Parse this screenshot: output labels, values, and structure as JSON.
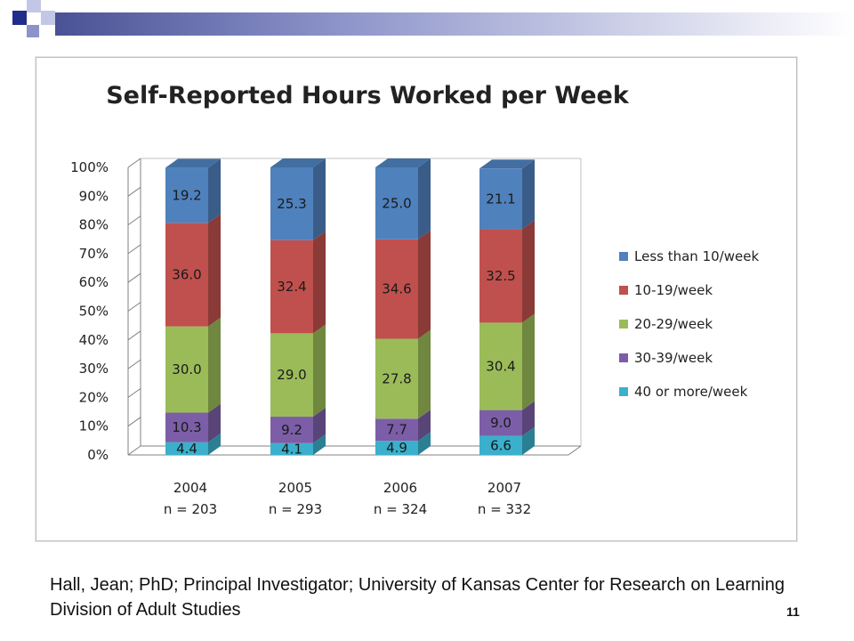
{
  "slide": {
    "citation": "Hall, Jean; PhD; Principal Investigator; University of Kansas Center for Research on Learning Division of Adult Studies",
    "page_number": "11",
    "accent_colors": [
      "#1f2e8a",
      "#8c93c9",
      "#c3c7e6"
    ]
  },
  "chart_data": {
    "type": "bar",
    "stacked": true,
    "three_d": true,
    "title": "Self-Reported Hours Worked per Week",
    "categories": [
      "2004",
      "2005",
      "2006",
      "2007"
    ],
    "category_sublabels": [
      "n = 203",
      "n = 293",
      "n = 324",
      "n = 332"
    ],
    "y_ticks": [
      "0%",
      "10%",
      "20%",
      "30%",
      "40%",
      "50%",
      "60%",
      "70%",
      "80%",
      "90%",
      "100%"
    ],
    "ylim": [
      0,
      100
    ],
    "legend_position": "right",
    "grid": false,
    "series": [
      {
        "name": "40 or more/week",
        "color": "#3ab0cc",
        "values": [
          4.4,
          4.1,
          4.9,
          6.6
        ]
      },
      {
        "name": "30-39/week",
        "color": "#7b5ea7",
        "values": [
          10.3,
          9.2,
          7.7,
          9.0
        ]
      },
      {
        "name": "20-29/week",
        "color": "#9bbb59",
        "values": [
          30.0,
          29.0,
          27.8,
          30.4
        ]
      },
      {
        "name": "10-19/week",
        "color": "#c0504d",
        "values": [
          36.0,
          32.4,
          34.6,
          32.5
        ]
      },
      {
        "name": "Less than 10/week",
        "color": "#4f81bd",
        "values": [
          19.2,
          25.3,
          25.0,
          21.1
        ]
      }
    ],
    "data_labels": [
      [
        "4.4",
        "4.1",
        "4.9",
        "6.6"
      ],
      [
        "10.3",
        "9.2",
        "7.7",
        "9.0"
      ],
      [
        "30.0",
        "29.0",
        "27.8",
        "30.4"
      ],
      [
        "36.0",
        "32.4",
        "34.6",
        "32.5"
      ],
      [
        "19.2",
        "25.3",
        "25.0",
        "21.1"
      ]
    ]
  }
}
